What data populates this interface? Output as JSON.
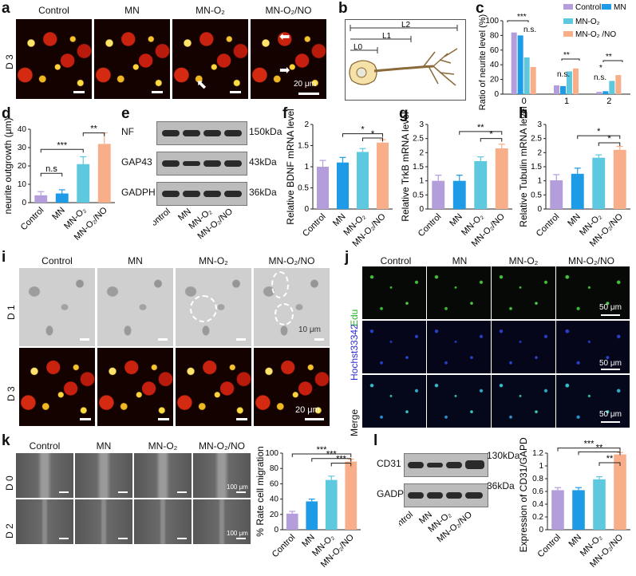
{
  "panels": {
    "a": {
      "label": "a",
      "headers": [
        "Control",
        "MN",
        "MN-O₂",
        "MN-O₂/NO"
      ],
      "row": "D 3",
      "scale": "20 μm"
    },
    "b": {
      "label": "b",
      "l2": "L2",
      "l1": "L1",
      "l0": "L0"
    },
    "c": {
      "label": "c",
      "ylabel": "Ratio of neurite level (%)",
      "legend": [
        "Control",
        "MN",
        "MN-O₂",
        "MN-O₂ /NO"
      ],
      "sig": [
        "***",
        "n.s.",
        "**",
        "n.s.",
        "*",
        "**",
        "n.s."
      ]
    },
    "d": {
      "label": "d",
      "ylabel": "neurite outgrowth (μm)",
      "sig": [
        "n.s",
        "***",
        "**"
      ]
    },
    "e": {
      "label": "e",
      "rows": [
        "NF",
        "GAP43",
        "GADPH"
      ],
      "sizes": [
        "150kDa",
        "43kDa",
        "36kDa"
      ],
      "cats": [
        "Control",
        "MN",
        "MN-O₂",
        "MN-O₂/NO"
      ]
    },
    "f": {
      "label": "f",
      "ylabel": "Relative BDNF mRNA level",
      "sig": [
        "*",
        "*"
      ]
    },
    "g": {
      "label": "g",
      "ylabel": "Relative TrkB mRNA level",
      "sig": [
        "**",
        "*"
      ]
    },
    "h": {
      "label": "h",
      "ylabel": "Relative Tubulin mRNA level",
      "sig": [
        "*",
        "*"
      ]
    },
    "i": {
      "label": "i",
      "headers": [
        "Control",
        "MN",
        "MN-O₂",
        "MN-O₂/NO"
      ],
      "rows": [
        "D 1",
        "D 3"
      ],
      "scale1": "10 μm",
      "scale2": "20 μm"
    },
    "j": {
      "label": "j",
      "headers": [
        "Control",
        "MN",
        "MN-O₂",
        "MN-O₂/NO"
      ],
      "rows": [
        "Edu",
        "Hochst33342",
        "Merge"
      ],
      "scale": "50 μm"
    },
    "k": {
      "label": "k",
      "headers": [
        "Control",
        "MN",
        "MN-O₂",
        "MN-O₂/NO"
      ],
      "rows": [
        "D 0",
        "D 2"
      ],
      "scale": "100 μm",
      "ylabel": "% Rate cell migration",
      "sig": [
        "***",
        "***",
        "***"
      ]
    },
    "l": {
      "label": "l",
      "rows": [
        "CD31",
        "GADPH"
      ],
      "sizes": [
        "130kDa",
        "36kDa"
      ],
      "ylabel": "Expression of CD31/GAPDH",
      "sig": [
        "***",
        "**",
        "**"
      ]
    }
  },
  "colors": {
    "control": "#b39ddb",
    "mn": "#1e9be6",
    "mn_o2": "#5ec8de",
    "mn_o2_no": "#f8ae88"
  },
  "chart_data": [
    {
      "id": "c",
      "type": "bar",
      "categories": [
        "0",
        "1",
        "2"
      ],
      "series": [
        {
          "name": "Control",
          "values": [
            84,
            12,
            3
          ]
        },
        {
          "name": "MN",
          "values": [
            80,
            11,
            4
          ]
        },
        {
          "name": "MN-O₂",
          "values": [
            50,
            31,
            18
          ]
        },
        {
          "name": "MN-O₂ /NO",
          "values": [
            37,
            35,
            26
          ]
        }
      ],
      "ylim": [
        0,
        100
      ],
      "yticks": [
        0,
        20,
        40,
        60,
        80,
        100
      ],
      "xlabel": "",
      "ylabel": "Ratio of neurite level (%)"
    },
    {
      "id": "d",
      "type": "bar",
      "categories": [
        "Control",
        "MN",
        "MN-O₂",
        "MN-O₂/NO"
      ],
      "values": [
        4,
        5,
        21,
        32
      ],
      "errors": [
        2,
        2,
        4,
        6
      ],
      "ylim": [
        0,
        40
      ],
      "yticks": [
        0,
        10,
        20,
        30,
        40
      ],
      "ylabel": "neurite outgrowth (μm)"
    },
    {
      "id": "f",
      "type": "bar",
      "categories": [
        "Control",
        "MN",
        "MN-O₂",
        "MN-O₂/NO"
      ],
      "values": [
        1.0,
        1.1,
        1.35,
        1.57
      ],
      "errors": [
        0.15,
        0.12,
        0.08,
        0.07
      ],
      "ylim": [
        0,
        2
      ],
      "yticks": [
        0,
        0.5,
        1.0,
        1.5,
        2.0
      ],
      "ylabel": "Relative BDNF mRNA level"
    },
    {
      "id": "g",
      "type": "bar",
      "categories": [
        "Control",
        "MN",
        "MN-O₂",
        "MN-O₂/NO"
      ],
      "values": [
        1.0,
        1.0,
        1.7,
        2.15
      ],
      "errors": [
        0.2,
        0.2,
        0.15,
        0.15
      ],
      "ylim": [
        0,
        3
      ],
      "yticks": [
        0,
        0.5,
        1.0,
        1.5,
        2.0,
        2.5,
        3.0
      ],
      "ylabel": "Relative TrkB mRNA level"
    },
    {
      "id": "h",
      "type": "bar",
      "categories": [
        "Control",
        "MN",
        "MN-O₂",
        "MN-O₂/NO"
      ],
      "values": [
        1.02,
        1.25,
        1.82,
        2.1
      ],
      "errors": [
        0.2,
        0.2,
        0.1,
        0.12
      ],
      "ylim": [
        0,
        3
      ],
      "yticks": [
        0,
        0.5,
        1.0,
        1.5,
        2.0,
        2.5,
        3.0
      ],
      "ylabel": "Relative Tubulin mRNA level"
    },
    {
      "id": "k",
      "type": "bar",
      "categories": [
        "Control",
        "MN",
        "MN-O₂",
        "MN-O₂/NO"
      ],
      "values": [
        21,
        37,
        65,
        89
      ],
      "errors": [
        3,
        3,
        5,
        3
      ],
      "ylim": [
        0,
        100
      ],
      "yticks": [
        0,
        20,
        40,
        60,
        80,
        100
      ],
      "ylabel": "% Rate cell migration"
    },
    {
      "id": "l",
      "type": "bar",
      "categories": [
        "Control",
        "MN",
        "MN-O₂",
        "MN-O₂/NO"
      ],
      "values": [
        0.62,
        0.62,
        0.79,
        1.18
      ],
      "errors": [
        0.04,
        0.04,
        0.04,
        0.03
      ],
      "ylim": [
        0,
        1.2
      ],
      "yticks": [
        0,
        0.2,
        0.4,
        0.6,
        0.8,
        1.0,
        1.2
      ],
      "ylabel": "Expression of CD31/GAPDH"
    }
  ]
}
